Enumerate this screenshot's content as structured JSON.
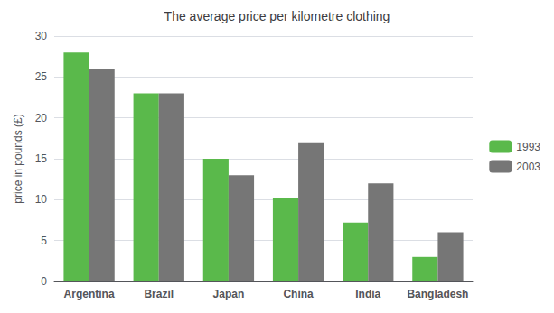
{
  "chart_data": {
    "type": "bar",
    "title": "The average price per kilometre clothing",
    "ylabel": "price in pounds (£)",
    "categories": [
      "Argentina",
      "Brazil",
      "Japan",
      "China",
      "India",
      "Bangladesh"
    ],
    "series": [
      {
        "name": "1993",
        "color": "#5ab94b",
        "values": [
          28,
          23,
          15,
          10.2,
          7.2,
          3
        ]
      },
      {
        "name": "2003",
        "color": "#767676",
        "values": [
          26,
          23,
          13,
          17,
          12,
          6
        ]
      }
    ],
    "ylim": [
      0,
      30
    ],
    "yticks": [
      0,
      5,
      10,
      15,
      20,
      25,
      30
    ],
    "grid": true,
    "legend": "right"
  }
}
